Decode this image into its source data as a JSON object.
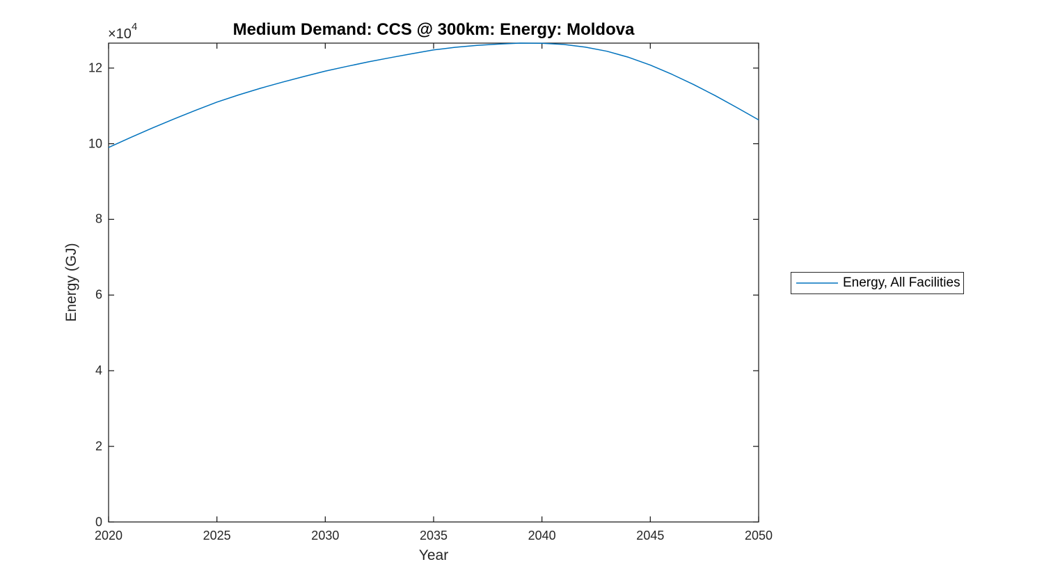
{
  "chart_data": {
    "type": "line",
    "title": "Medium Demand: CCS @ 300km: Energy: Moldova",
    "xlabel": "Year",
    "ylabel": "Energy (GJ)",
    "legend": [
      "Energy, All Facilities"
    ],
    "legend_position": "right-outside",
    "grid": false,
    "x": [
      2020,
      2021,
      2022,
      2023,
      2024,
      2025,
      2026,
      2027,
      2028,
      2029,
      2030,
      2031,
      2032,
      2033,
      2034,
      2035,
      2036,
      2037,
      2038,
      2039,
      2040,
      2041,
      2042,
      2043,
      2044,
      2045,
      2046,
      2047,
      2048,
      2049,
      2050
    ],
    "series": [
      {
        "name": "Energy, All Facilities",
        "color": "#0072BD",
        "values": [
          99000,
          101600,
          104100,
          106500,
          108800,
          111000,
          112900,
          114650,
          116250,
          117750,
          119200,
          120450,
          121650,
          122750,
          123800,
          124800,
          125500,
          126000,
          126350,
          126600,
          126550,
          126250,
          125550,
          124450,
          122850,
          120800,
          118350,
          115650,
          112700,
          109550,
          106300
        ]
      }
    ],
    "axes": {
      "xlim": [
        2020,
        2050
      ],
      "ylim": [
        0,
        126600
      ],
      "xticks": [
        2020,
        2025,
        2030,
        2035,
        2040,
        2045,
        2050
      ],
      "yticks": [
        {
          "value": 0,
          "label": "0"
        },
        {
          "value": 20000,
          "label": "2"
        },
        {
          "value": 40000,
          "label": "4"
        },
        {
          "value": 60000,
          "label": "6"
        },
        {
          "value": 80000,
          "label": "8"
        },
        {
          "value": 100000,
          "label": "10"
        },
        {
          "value": 120000,
          "label": "12"
        }
      ],
      "exponent_base": "×10",
      "exponent_power": "4",
      "color": "#1a1a1a"
    }
  }
}
